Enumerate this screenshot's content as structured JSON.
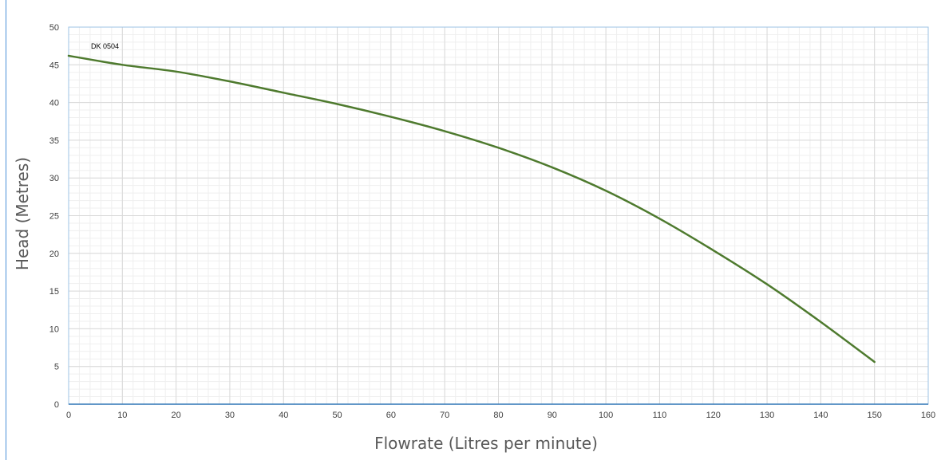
{
  "chart_data": {
    "type": "line",
    "xlabel": "Flowrate (Litres per minute)",
    "ylabel": "Head (Metres)",
    "xlim": [
      0,
      160
    ],
    "ylim": [
      0,
      50
    ],
    "x_ticks": [
      0,
      10,
      20,
      30,
      40,
      50,
      60,
      70,
      80,
      90,
      100,
      110,
      120,
      130,
      140,
      150,
      160
    ],
    "y_ticks": [
      0,
      5,
      10,
      15,
      20,
      25,
      30,
      35,
      40,
      45,
      50
    ],
    "x_minor_step": 2,
    "y_minor_step": 1,
    "grid": true,
    "annotation": "DK 0504",
    "colors": {
      "curve": "#4e7a2e",
      "zero_line": "#2e75b6",
      "plot_border": "#9dc3e6",
      "grid_major": "#d9d9d9",
      "grid_minor": "#efefef"
    },
    "series": [
      {
        "name": "DK 0504",
        "x": [
          0,
          10,
          20,
          30,
          40,
          50,
          60,
          70,
          80,
          90,
          100,
          110,
          120,
          130,
          140,
          150
        ],
        "y": [
          46.2,
          45.0,
          44.1,
          42.8,
          41.3,
          39.8,
          38.1,
          36.2,
          34.0,
          31.4,
          28.3,
          24.6,
          20.4,
          15.9,
          10.9,
          5.6
        ]
      }
    ]
  }
}
